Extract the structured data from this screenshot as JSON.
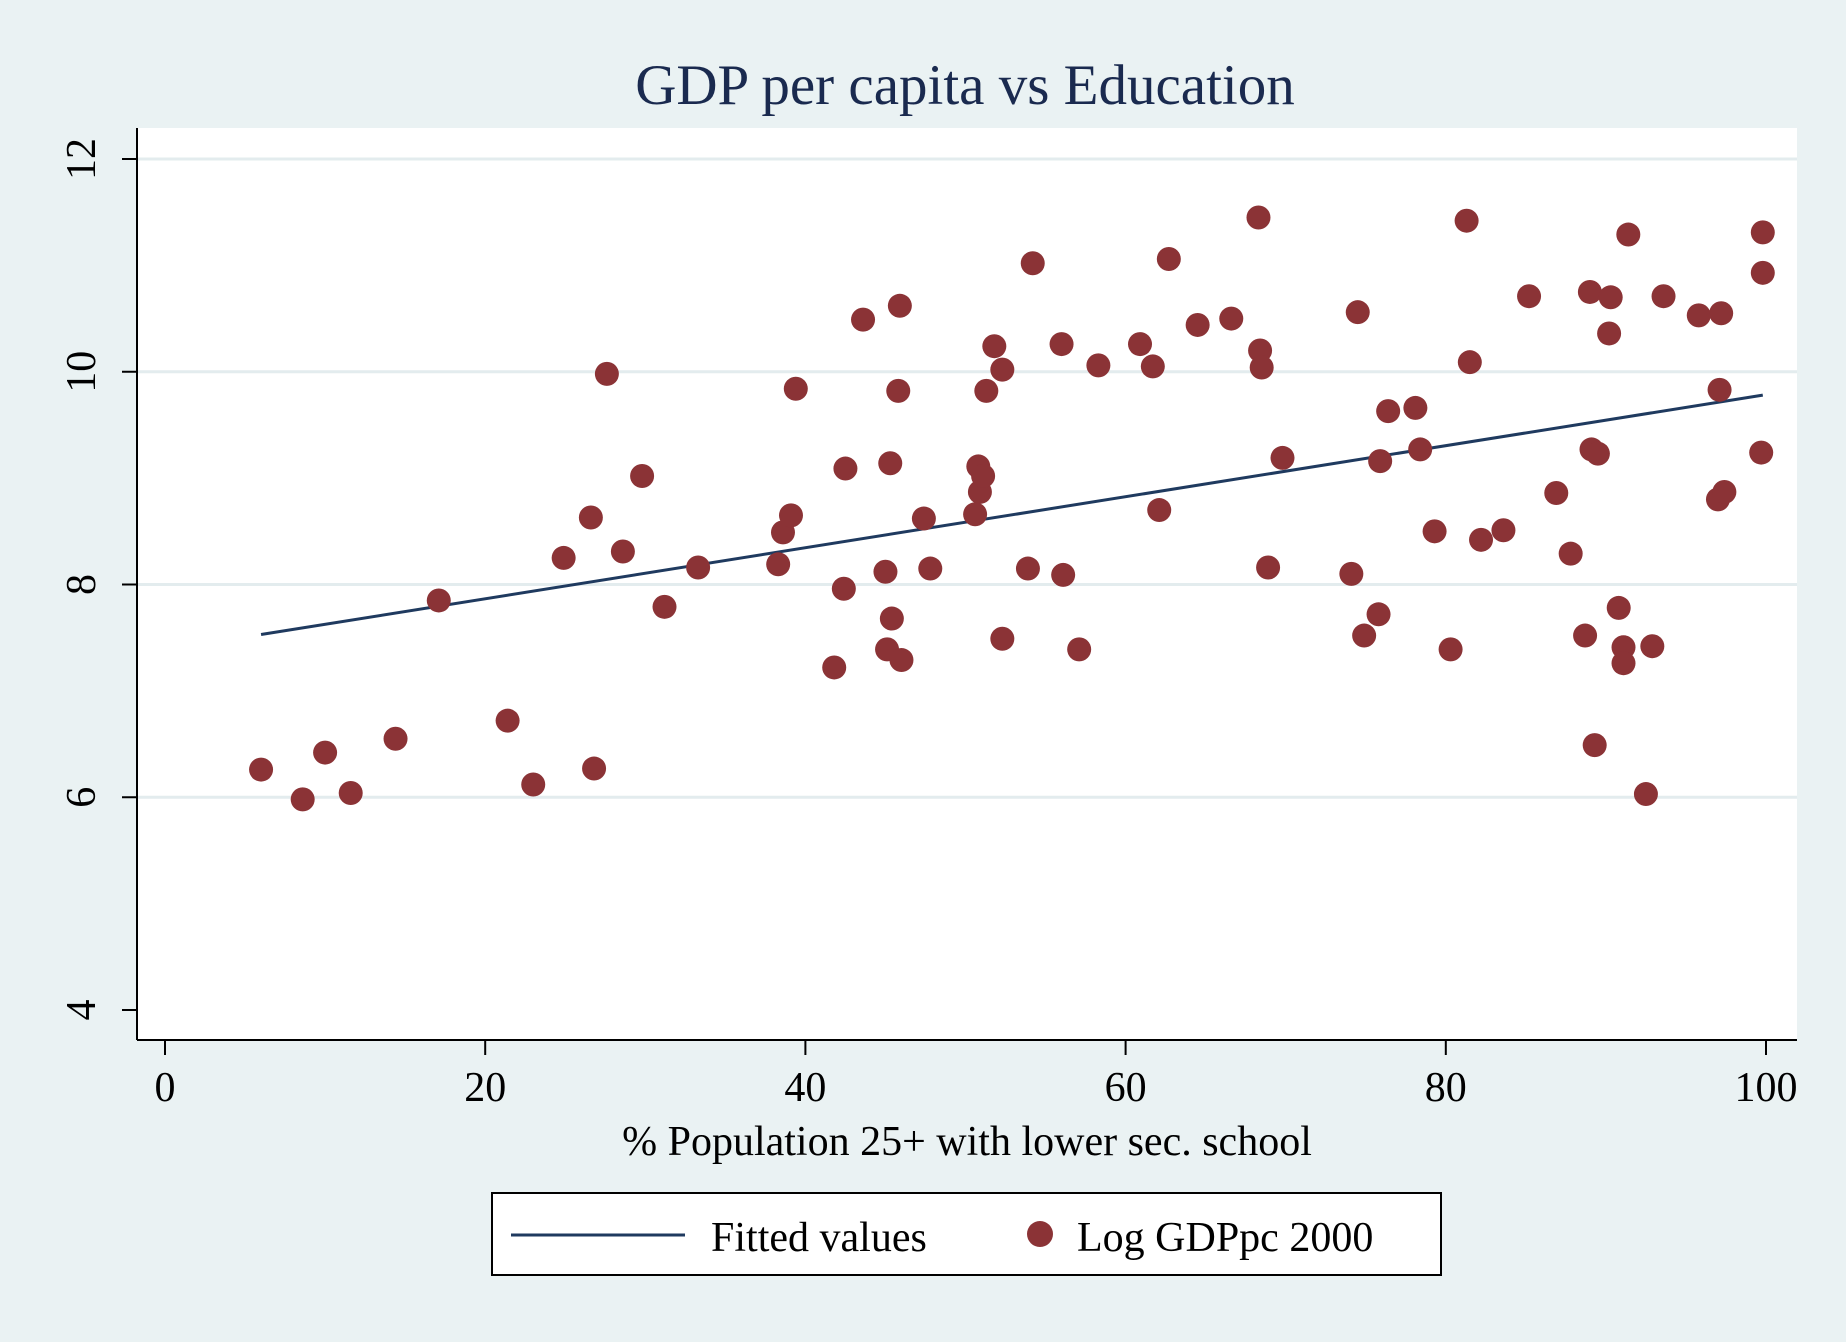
{
  "chart_data": {
    "type": "scatter",
    "title": "GDP per capita vs Education",
    "xlabel": "% Population 25+ with lower sec. school",
    "ylabel": "",
    "xlim": [
      0,
      100
    ],
    "ylim": [
      4,
      12
    ],
    "x_ticks": [
      0,
      20,
      40,
      60,
      80,
      100
    ],
    "y_ticks": [
      4,
      6,
      8,
      10,
      12
    ],
    "grid": true,
    "legend_position": "bottom",
    "colors": {
      "points": "#8b3336",
      "line": "#1f3a5f",
      "background": "#eaf2f3",
      "plot": "#ffffff"
    },
    "series": [
      {
        "name": "Fitted values",
        "type": "line",
        "x": [
          6.0,
          99.8
        ],
        "y": [
          7.53,
          9.78
        ]
      },
      {
        "name": "Log GDPpc 2000",
        "type": "scatter",
        "x": [
          6.0,
          8.6,
          10.0,
          11.6,
          14.4,
          17.1,
          21.4,
          23.0,
          24.9,
          26.6,
          26.8,
          27.6,
          28.6,
          29.8,
          31.2,
          33.3,
          38.3,
          38.6,
          39.1,
          39.4,
          41.8,
          42.4,
          42.5,
          43.6,
          45.0,
          45.1,
          45.3,
          45.4,
          45.8,
          45.9,
          46.0,
          47.4,
          47.8,
          50.6,
          50.8,
          50.9,
          51.1,
          51.3,
          51.8,
          52.3,
          52.3,
          53.9,
          54.2,
          56.0,
          56.1,
          57.1,
          58.3,
          60.9,
          61.7,
          62.1,
          62.7,
          64.5,
          66.6,
          68.3,
          68.4,
          68.5,
          68.9,
          69.8,
          74.1,
          74.5,
          74.9,
          75.8,
          75.9,
          76.4,
          78.1,
          78.4,
          79.3,
          80.3,
          81.3,
          81.5,
          82.2,
          83.6,
          85.2,
          86.9,
          87.8,
          88.7,
          89.0,
          89.1,
          89.3,
          89.5,
          90.2,
          90.3,
          90.8,
          91.1,
          91.1,
          91.4,
          92.5,
          92.9,
          93.6,
          95.8,
          97.0,
          97.1,
          97.2,
          97.4,
          99.7,
          99.8,
          99.8
        ],
        "y": [
          6.26,
          5.98,
          6.42,
          6.04,
          6.55,
          7.85,
          6.72,
          6.12,
          8.25,
          8.63,
          6.27,
          9.98,
          8.31,
          9.02,
          7.79,
          8.16,
          8.19,
          8.49,
          8.65,
          9.84,
          7.22,
          7.96,
          9.09,
          10.49,
          8.12,
          7.39,
          9.14,
          7.68,
          9.82,
          10.62,
          7.29,
          8.62,
          8.15,
          8.66,
          9.11,
          8.87,
          9.02,
          9.82,
          10.24,
          10.02,
          7.49,
          8.15,
          11.02,
          10.26,
          8.09,
          7.39,
          10.06,
          10.26,
          10.05,
          8.7,
          11.06,
          10.44,
          10.5,
          11.45,
          10.2,
          10.04,
          8.16,
          9.19,
          8.1,
          10.56,
          7.52,
          7.72,
          9.16,
          9.63,
          9.66,
          9.27,
          8.5,
          7.39,
          11.42,
          10.09,
          8.42,
          8.51,
          10.71,
          8.86,
          8.29,
          7.52,
          10.75,
          9.27,
          6.49,
          9.23,
          10.36,
          10.7,
          7.78,
          7.41,
          7.26,
          11.29,
          6.03,
          7.42,
          10.71,
          10.53,
          8.8,
          9.83,
          10.55,
          8.87,
          9.24,
          11.31,
          10.93
        ]
      }
    ]
  }
}
